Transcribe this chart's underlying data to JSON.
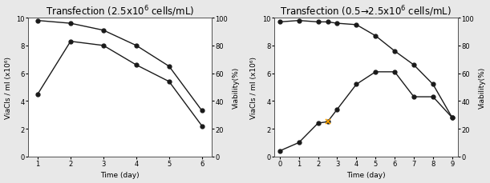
{
  "chart1": {
    "title1": "Transfection (2.5x10",
    "title2": " cells/mL)",
    "time": [
      1,
      2,
      3,
      4,
      5,
      6
    ],
    "viable_cells": [
      4.5,
      8.3,
      8.0,
      6.6,
      5.4,
      2.2
    ],
    "viability": [
      98,
      96,
      91,
      80,
      65,
      33
    ],
    "xlim": [
      0.7,
      6.3
    ],
    "xticks": [
      1,
      2,
      3,
      4,
      5,
      6
    ],
    "ylim_left": [
      0,
      10
    ],
    "ylim_right": [
      0,
      100
    ],
    "yticks_left": [
      0,
      2,
      4,
      6,
      8,
      10
    ],
    "yticks_right": [
      0,
      20,
      40,
      60,
      80,
      100
    ],
    "xlabel": "Time (day)",
    "ylabel_left": "ViaCls / ml (x10⁶)",
    "ylabel_right": "Viability(%)"
  },
  "chart2": {
    "title1": "Transfection (0.5→2.5x10",
    "title2": " cells/mL)",
    "time": [
      0,
      1,
      2,
      2.5,
      3,
      4,
      5,
      6,
      7,
      8,
      9
    ],
    "viable_cells": [
      0.4,
      1.0,
      2.4,
      2.5,
      3.4,
      5.2,
      6.1,
      6.1,
      4.3,
      4.3,
      2.8
    ],
    "viability": [
      97,
      98,
      97,
      97,
      96,
      95,
      87,
      76,
      66,
      52,
      28
    ],
    "orange_time": 2.5,
    "orange_vc": 2.5,
    "xlim": [
      -0.3,
      9.3
    ],
    "xticks": [
      0,
      1,
      2,
      3,
      4,
      5,
      6,
      7,
      8,
      9
    ],
    "ylim_left": [
      0,
      10
    ],
    "ylim_right": [
      0,
      100
    ],
    "yticks_left": [
      0,
      2,
      4,
      6,
      8,
      10
    ],
    "yticks_right": [
      0,
      20,
      40,
      60,
      80,
      100
    ],
    "xlabel": "Time (day)",
    "ylabel_left": "ViaCls / ml (x10⁶)",
    "ylabel_right": "Viability(%)"
  },
  "line_color": "#1a1a1a",
  "marker": "o",
  "markersize": 3.5,
  "linewidth": 1.0,
  "bg_color": "#e8e8e8",
  "font_size_title": 8.5,
  "font_size_label": 6.5,
  "font_size_tick": 6.0,
  "spine_color": "#555555"
}
